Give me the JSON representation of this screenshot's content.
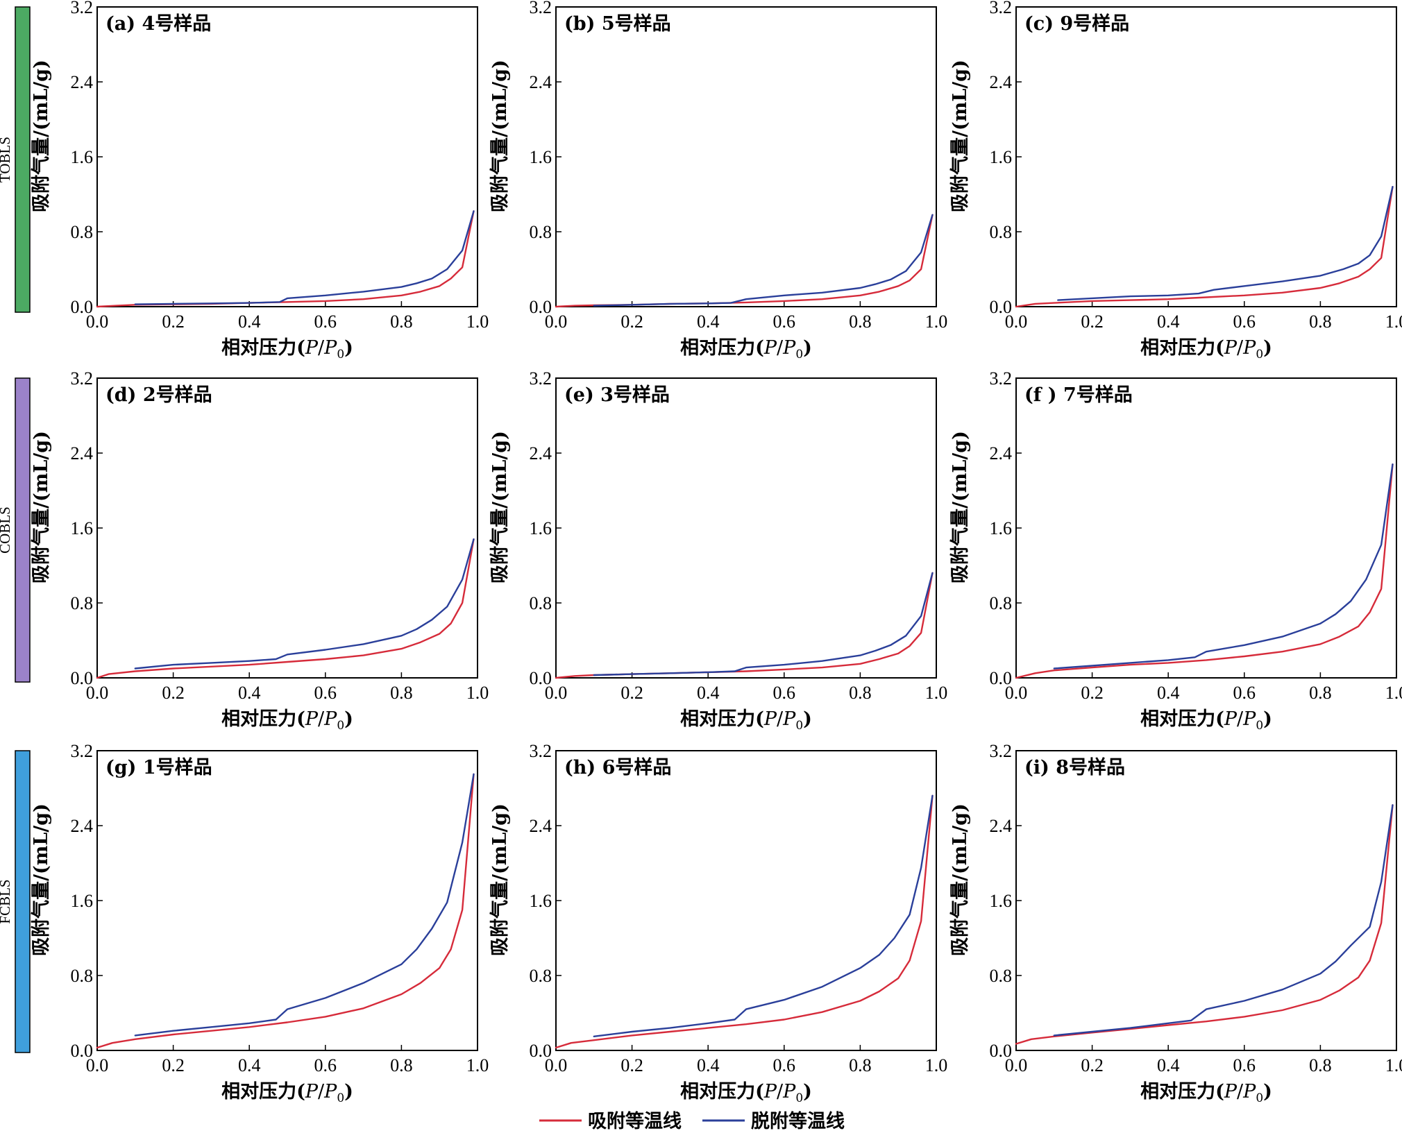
{
  "colors": {
    "adsorption": "#d62b3a",
    "desorption": "#2a3f9a",
    "group_TOBLS": "#4caa63",
    "group_COBLS": "#9b82c9",
    "group_FCBLS": "#3f9fdc"
  },
  "legend": {
    "adsorption": "吸附等温线",
    "desorption": "脱附等温线"
  },
  "groups": [
    {
      "label": "TOBLS",
      "color": "#4caa63"
    },
    {
      "label": "COBLS",
      "color": "#9b82c9"
    },
    {
      "label": "FCBLS",
      "color": "#3f9fdc"
    }
  ],
  "axes": {
    "xlabel": "相对压力(P/P0)",
    "ylabel": "吸附气量/(mL/g)",
    "xticks": [
      "0.0",
      "0.2",
      "0.4",
      "0.6",
      "0.8",
      "1.0"
    ],
    "yticks": [
      "0.0",
      "0.8",
      "1.6",
      "2.4",
      "3.2"
    ]
  },
  "chart_data": [
    {
      "type": "line",
      "title": "(a) 4号样品",
      "xlim": [
        0,
        1.0
      ],
      "ylim": [
        0,
        3.2
      ],
      "xlabel": "相对压力(P/P0)",
      "ylabel": "吸附气量/(mL/g)",
      "series": [
        {
          "name": "吸附等温线",
          "x": [
            0.0,
            0.05,
            0.1,
            0.2,
            0.3,
            0.4,
            0.5,
            0.6,
            0.7,
            0.8,
            0.85,
            0.9,
            0.93,
            0.96,
            0.99
          ],
          "y": [
            0.0,
            0.01,
            0.02,
            0.025,
            0.03,
            0.04,
            0.05,
            0.06,
            0.08,
            0.12,
            0.16,
            0.22,
            0.3,
            0.42,
            1.02
          ]
        },
        {
          "name": "脱附等温线",
          "x": [
            0.99,
            0.96,
            0.92,
            0.88,
            0.84,
            0.8,
            0.7,
            0.6,
            0.5,
            0.48,
            0.4,
            0.3,
            0.2,
            0.1
          ],
          "y": [
            1.02,
            0.6,
            0.4,
            0.3,
            0.25,
            0.21,
            0.16,
            0.12,
            0.09,
            0.05,
            0.04,
            0.035,
            0.03,
            0.025
          ]
        }
      ]
    },
    {
      "type": "line",
      "title": "(b) 5号样品",
      "xlim": [
        0,
        1.0
      ],
      "ylim": [
        0,
        3.2
      ],
      "xlabel": "相对压力(P/P0)",
      "ylabel": "吸附气量/(mL/g)",
      "series": [
        {
          "name": "吸附等温线",
          "x": [
            0.0,
            0.05,
            0.1,
            0.2,
            0.3,
            0.4,
            0.5,
            0.6,
            0.7,
            0.8,
            0.85,
            0.9,
            0.93,
            0.96,
            0.99
          ],
          "y": [
            0.0,
            0.01,
            0.015,
            0.02,
            0.03,
            0.035,
            0.045,
            0.06,
            0.08,
            0.12,
            0.16,
            0.22,
            0.28,
            0.4,
            0.98
          ]
        },
        {
          "name": "脱附等温线",
          "x": [
            0.99,
            0.96,
            0.92,
            0.88,
            0.84,
            0.8,
            0.7,
            0.6,
            0.5,
            0.46,
            0.4,
            0.3,
            0.2,
            0.1
          ],
          "y": [
            0.98,
            0.58,
            0.38,
            0.29,
            0.24,
            0.2,
            0.15,
            0.12,
            0.08,
            0.04,
            0.035,
            0.03,
            0.02,
            0.01
          ]
        }
      ]
    },
    {
      "type": "line",
      "title": "(c) 9号样品",
      "xlim": [
        0,
        1.0
      ],
      "ylim": [
        0,
        3.2
      ],
      "xlabel": "相对压力(P/P0)",
      "ylabel": "吸附气量/(mL/g)",
      "series": [
        {
          "name": "吸附等温线",
          "x": [
            0.0,
            0.05,
            0.1,
            0.2,
            0.3,
            0.4,
            0.5,
            0.6,
            0.7,
            0.8,
            0.85,
            0.9,
            0.93,
            0.96,
            0.99
          ],
          "y": [
            0.0,
            0.03,
            0.04,
            0.06,
            0.07,
            0.08,
            0.1,
            0.12,
            0.15,
            0.2,
            0.25,
            0.32,
            0.4,
            0.52,
            1.28
          ]
        },
        {
          "name": "脱附等温线",
          "x": [
            0.99,
            0.96,
            0.93,
            0.9,
            0.86,
            0.8,
            0.7,
            0.6,
            0.52,
            0.48,
            0.4,
            0.3,
            0.2,
            0.11
          ],
          "y": [
            1.28,
            0.75,
            0.55,
            0.46,
            0.4,
            0.33,
            0.27,
            0.22,
            0.18,
            0.14,
            0.12,
            0.11,
            0.09,
            0.07
          ]
        }
      ]
    },
    {
      "type": "line",
      "title": "(d) 2号样品",
      "xlim": [
        0,
        1.0
      ],
      "ylim": [
        0,
        3.2
      ],
      "xlabel": "相对压力(P/P0)",
      "ylabel": "吸附气量/(mL/g)",
      "series": [
        {
          "name": "吸附等温线",
          "x": [
            0.0,
            0.03,
            0.1,
            0.2,
            0.3,
            0.4,
            0.5,
            0.6,
            0.7,
            0.8,
            0.85,
            0.9,
            0.93,
            0.96,
            0.99
          ],
          "y": [
            0.0,
            0.04,
            0.07,
            0.1,
            0.12,
            0.14,
            0.17,
            0.2,
            0.24,
            0.31,
            0.38,
            0.47,
            0.58,
            0.8,
            1.48
          ]
        },
        {
          "name": "脱附等温线",
          "x": [
            0.99,
            0.96,
            0.92,
            0.88,
            0.84,
            0.8,
            0.7,
            0.6,
            0.5,
            0.47,
            0.4,
            0.3,
            0.2,
            0.1
          ],
          "y": [
            1.48,
            1.05,
            0.76,
            0.62,
            0.52,
            0.45,
            0.36,
            0.3,
            0.25,
            0.2,
            0.18,
            0.16,
            0.14,
            0.1
          ]
        }
      ]
    },
    {
      "type": "line",
      "title": "(e) 3号样品",
      "xlim": [
        0,
        1.0
      ],
      "ylim": [
        0,
        3.2
      ],
      "xlabel": "相对压力(P/P0)",
      "ylabel": "吸附气量/(mL/g)",
      "series": [
        {
          "name": "吸附等温线",
          "x": [
            0.0,
            0.05,
            0.1,
            0.2,
            0.3,
            0.4,
            0.5,
            0.6,
            0.7,
            0.8,
            0.85,
            0.9,
            0.93,
            0.96,
            0.99
          ],
          "y": [
            0.0,
            0.02,
            0.03,
            0.04,
            0.05,
            0.06,
            0.07,
            0.09,
            0.11,
            0.15,
            0.2,
            0.26,
            0.34,
            0.48,
            1.12
          ]
        },
        {
          "name": "脱附等温线",
          "x": [
            0.99,
            0.96,
            0.92,
            0.88,
            0.84,
            0.8,
            0.7,
            0.6,
            0.5,
            0.47,
            0.4,
            0.3,
            0.2,
            0.1
          ],
          "y": [
            1.12,
            0.66,
            0.45,
            0.35,
            0.29,
            0.24,
            0.18,
            0.14,
            0.11,
            0.07,
            0.06,
            0.05,
            0.04,
            0.03
          ]
        }
      ]
    },
    {
      "type": "line",
      "title": "(f ) 7号样品",
      "xlim": [
        0,
        1.0
      ],
      "ylim": [
        0,
        3.2
      ],
      "xlabel": "相对压力(P/P0)",
      "ylabel": "吸附气量/(mL/g)",
      "series": [
        {
          "name": "吸附等温线",
          "x": [
            0.0,
            0.05,
            0.1,
            0.2,
            0.3,
            0.4,
            0.5,
            0.6,
            0.7,
            0.8,
            0.85,
            0.9,
            0.93,
            0.96,
            0.99
          ],
          "y": [
            0.0,
            0.05,
            0.08,
            0.11,
            0.14,
            0.16,
            0.19,
            0.23,
            0.28,
            0.36,
            0.44,
            0.55,
            0.7,
            0.95,
            2.28
          ]
        },
        {
          "name": "脱附等温线",
          "x": [
            0.99,
            0.96,
            0.92,
            0.88,
            0.84,
            0.8,
            0.7,
            0.6,
            0.5,
            0.47,
            0.4,
            0.3,
            0.2,
            0.1
          ],
          "y": [
            2.28,
            1.42,
            1.05,
            0.82,
            0.68,
            0.58,
            0.44,
            0.35,
            0.28,
            0.22,
            0.19,
            0.16,
            0.13,
            0.1
          ]
        }
      ]
    },
    {
      "type": "line",
      "title": "(g) 1号样品",
      "xlim": [
        0,
        1.0
      ],
      "ylim": [
        0,
        3.2
      ],
      "xlabel": "相对压力(P/P0)",
      "ylabel": "吸附气量/(mL/g)",
      "series": [
        {
          "name": "吸附等温线",
          "x": [
            0.0,
            0.04,
            0.1,
            0.2,
            0.3,
            0.4,
            0.5,
            0.6,
            0.7,
            0.8,
            0.85,
            0.9,
            0.93,
            0.96,
            0.99
          ],
          "y": [
            0.03,
            0.08,
            0.12,
            0.17,
            0.21,
            0.25,
            0.3,
            0.36,
            0.45,
            0.6,
            0.72,
            0.88,
            1.08,
            1.5,
            2.95
          ]
        },
        {
          "name": "脱附等温线",
          "x": [
            0.99,
            0.96,
            0.92,
            0.88,
            0.84,
            0.8,
            0.7,
            0.6,
            0.5,
            0.47,
            0.4,
            0.3,
            0.2,
            0.1
          ],
          "y": [
            2.95,
            2.22,
            1.58,
            1.3,
            1.08,
            0.92,
            0.72,
            0.56,
            0.44,
            0.33,
            0.29,
            0.25,
            0.21,
            0.16
          ]
        }
      ]
    },
    {
      "type": "line",
      "title": "(h) 6号样品",
      "xlim": [
        0,
        1.0
      ],
      "ylim": [
        0,
        3.2
      ],
      "xlabel": "相对压力(P/P0)",
      "ylabel": "吸附气量/(mL/g)",
      "series": [
        {
          "name": "吸附等温线",
          "x": [
            0.0,
            0.04,
            0.1,
            0.2,
            0.3,
            0.4,
            0.5,
            0.6,
            0.7,
            0.8,
            0.85,
            0.9,
            0.93,
            0.96,
            0.99
          ],
          "y": [
            0.03,
            0.08,
            0.11,
            0.16,
            0.2,
            0.24,
            0.28,
            0.33,
            0.41,
            0.53,
            0.63,
            0.77,
            0.96,
            1.38,
            2.72
          ]
        },
        {
          "name": "脱附等温线",
          "x": [
            0.99,
            0.96,
            0.93,
            0.89,
            0.85,
            0.8,
            0.7,
            0.6,
            0.5,
            0.47,
            0.4,
            0.3,
            0.2,
            0.1
          ],
          "y": [
            2.72,
            1.95,
            1.45,
            1.2,
            1.02,
            0.88,
            0.68,
            0.54,
            0.44,
            0.33,
            0.29,
            0.24,
            0.2,
            0.15
          ]
        }
      ]
    },
    {
      "type": "line",
      "title": "(i) 8号样品",
      "xlim": [
        0,
        1.0
      ],
      "ylim": [
        0,
        3.2
      ],
      "xlabel": "相对压力(P/P0)",
      "ylabel": "吸附气量/(mL/g)",
      "series": [
        {
          "name": "吸附等温线",
          "x": [
            0.0,
            0.04,
            0.1,
            0.2,
            0.3,
            0.4,
            0.5,
            0.6,
            0.7,
            0.8,
            0.85,
            0.9,
            0.93,
            0.96,
            0.99
          ],
          "y": [
            0.07,
            0.12,
            0.15,
            0.19,
            0.23,
            0.27,
            0.31,
            0.36,
            0.43,
            0.54,
            0.64,
            0.78,
            0.96,
            1.36,
            2.62
          ]
        },
        {
          "name": "脱附等温线",
          "x": [
            0.99,
            0.96,
            0.93,
            0.88,
            0.84,
            0.8,
            0.7,
            0.6,
            0.5,
            0.46,
            0.4,
            0.3,
            0.2,
            0.1
          ],
          "y": [
            2.62,
            1.8,
            1.32,
            1.12,
            0.95,
            0.82,
            0.65,
            0.53,
            0.44,
            0.32,
            0.29,
            0.24,
            0.2,
            0.16
          ]
        }
      ]
    }
  ]
}
